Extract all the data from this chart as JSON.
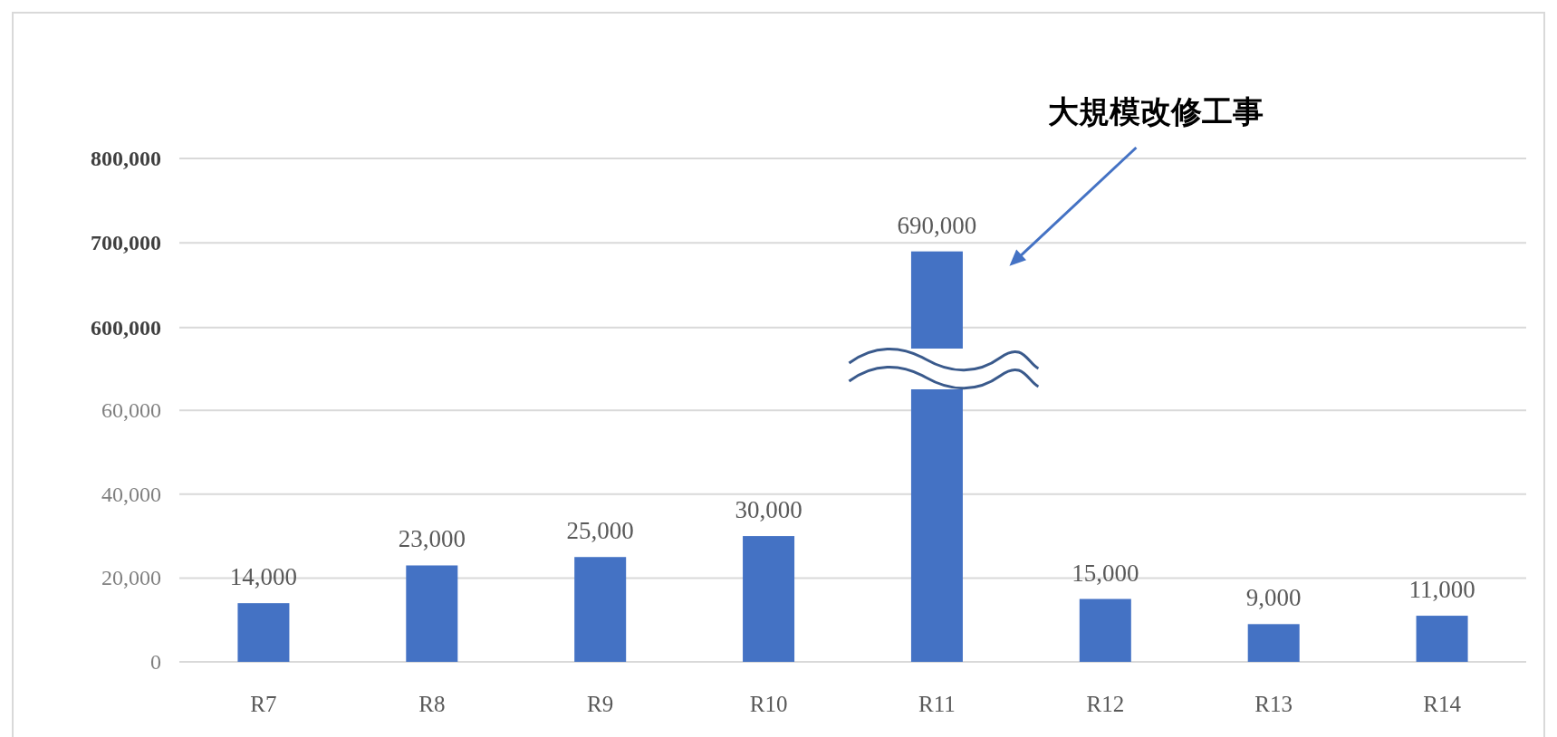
{
  "chart_data": [
    {
      "type": "bar",
      "categories": [
        null,
        null,
        null,
        null,
        null,
        null,
        null,
        null
      ],
      "values": [
        null,
        null,
        null,
        null,
        690000,
        null,
        null,
        null
      ],
      "value_labels": [
        null,
        null,
        null,
        null,
        "690,000",
        null,
        null,
        null
      ],
      "color": "#4472c4",
      "ylim": [
        575000,
        800000
      ],
      "yticks": [
        {
          "value": 600000,
          "label": "600,000"
        },
        {
          "value": 700000,
          "label": "700,000"
        },
        {
          "value": 800000,
          "label": "800,000"
        }
      ],
      "grid": "y",
      "tick_labels": "y",
      "annotations": [
        "大規模改修工事"
      ]
    },
    {
      "type": "bar",
      "categories": [
        "R7",
        "R8",
        "R9",
        "R10",
        "R11",
        "R12",
        "R13",
        "R14"
      ],
      "values": [
        14000,
        23000,
        25000,
        30000,
        65000,
        15000,
        9000,
        11000
      ],
      "value_labels": [
        "14,000",
        "23,000",
        "25,000",
        "30,000",
        null,
        "15,000",
        "9,000",
        "11,000"
      ],
      "color": "#4472c4",
      "ylim": [
        0,
        65000
      ],
      "yticks": [
        0,
        {
          "value": 20000,
          "label": "20,000"
        },
        {
          "value": 40000,
          "label": "40,000"
        },
        {
          "value": 60000,
          "label": "60,000"
        }
      ],
      "grid": "y"
    }
  ]
}
